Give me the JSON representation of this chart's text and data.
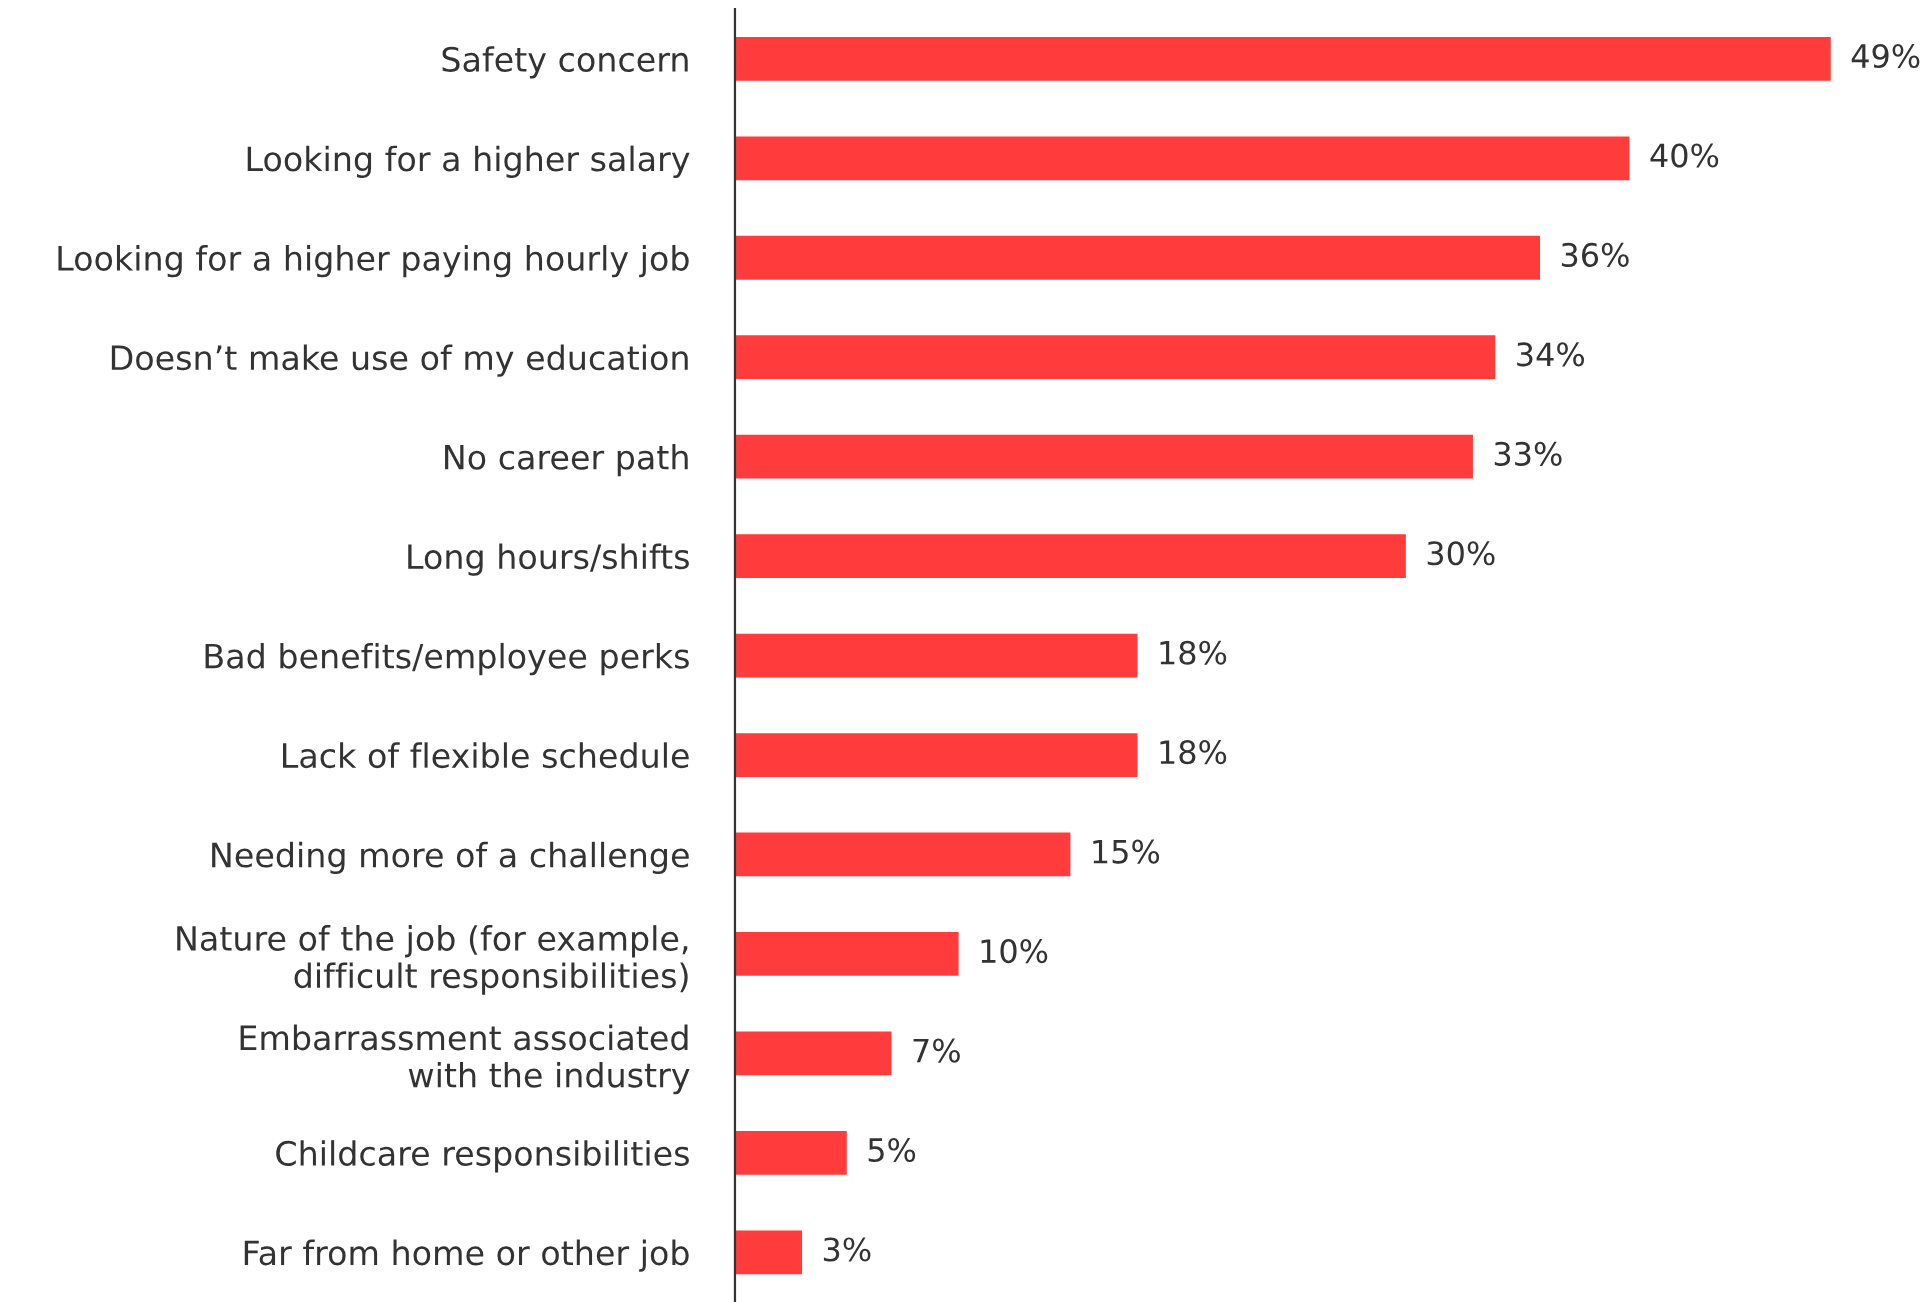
{
  "chart_data": {
    "type": "bar",
    "orientation": "horizontal",
    "categories": [
      "Safety concern",
      "Looking for a higher salary",
      "Looking for a higher paying hourly job",
      "Doesn’t make use of my education",
      "No career path",
      "Long hours/shifts",
      "Bad benefits/employee perks",
      "Lack of flexible schedule",
      "Needing more of a challenge",
      "Nature of the job (for example,\ndifficult responsibilities)",
      "Embarrassment associated\nwith the industry",
      "Childcare responsibilities",
      "Far from home or other job"
    ],
    "values": [
      49,
      40,
      36,
      34,
      33,
      30,
      18,
      18,
      15,
      10,
      7,
      5,
      3
    ],
    "value_labels": [
      "49%",
      "40%",
      "36%",
      "34%",
      "33%",
      "30%",
      "18%",
      "18%",
      "15%",
      "10%",
      "7%",
      "5%",
      "3%"
    ],
    "color": "#ff3b3b",
    "grid": false,
    "legend": false
  }
}
